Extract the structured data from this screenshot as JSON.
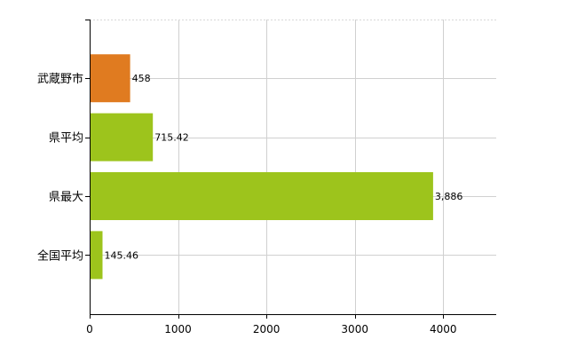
{
  "chart_data": {
    "type": "bar",
    "orientation": "horizontal",
    "categories": [
      "武蔵野市",
      "県平均",
      "県最大",
      "全国平均"
    ],
    "values": [
      458,
      715.42,
      3886,
      145.46
    ],
    "value_labels": [
      "458",
      "715.42",
      "3,886",
      "145.46"
    ],
    "bar_colors": [
      "#E07B20",
      "#9DC41C",
      "#9DC41C",
      "#9DC41C"
    ],
    "xlim": [
      0,
      4600
    ],
    "xticks": [
      0,
      1000,
      2000,
      3000,
      4000
    ],
    "xtick_labels": [
      "0",
      "1000",
      "2000",
      "3000",
      "4000"
    ],
    "grid": true,
    "legend": false,
    "title": "",
    "xlabel": "",
    "ylabel": ""
  }
}
